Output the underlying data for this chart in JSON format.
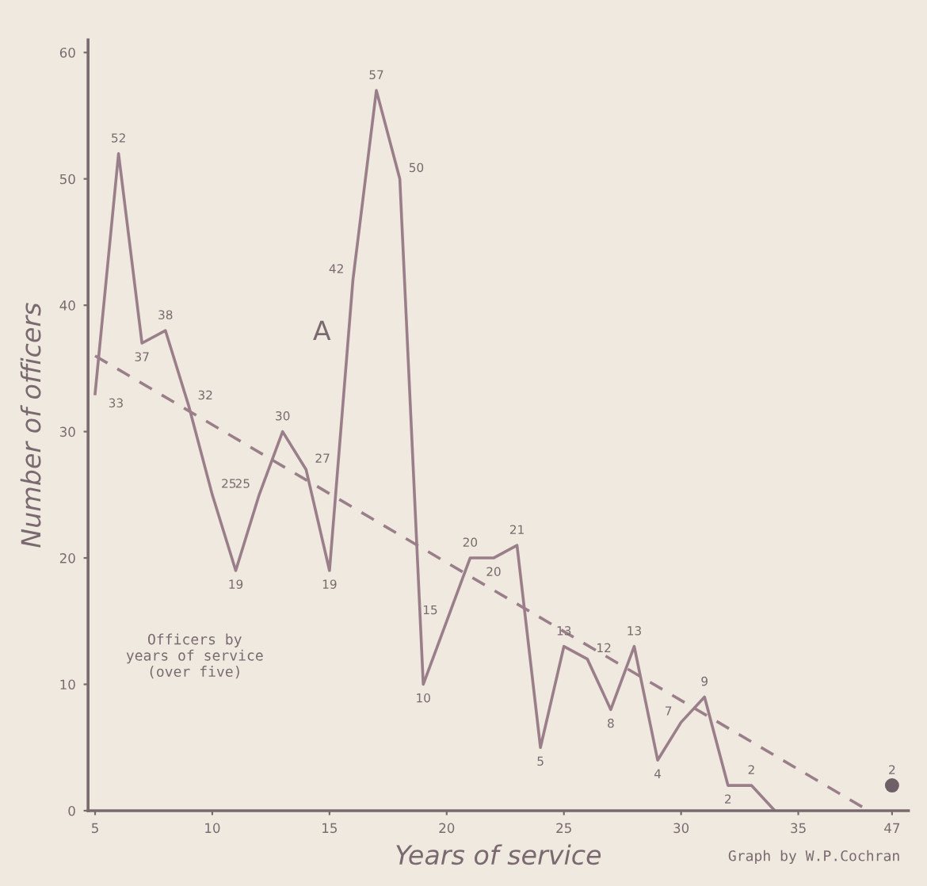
{
  "chart_data": {
    "type": "line",
    "xlabel": "Years of service",
    "ylabel": "Number of officers",
    "annotations": [
      "A",
      "Officers by\nyears of service\n(over five)",
      "Graph by W.P.Cochran"
    ],
    "categories": [
      "5",
      null,
      null,
      null,
      null,
      "10",
      null,
      null,
      null,
      null,
      "15",
      null,
      null,
      null,
      null,
      "20",
      null,
      null,
      null,
      null,
      "25",
      null,
      null,
      null,
      null,
      "30",
      null,
      null,
      null,
      null,
      "35",
      null,
      null,
      null,
      "47"
    ],
    "series": [
      {
        "color": "#9a7f8a",
        "line_style": "solid",
        "marker": "none",
        "values": [
          33,
          52,
          37,
          38,
          32,
          25,
          19,
          25,
          30,
          27,
          19,
          42,
          57,
          50,
          10,
          15,
          20,
          20,
          21,
          5,
          13,
          12,
          8,
          13,
          4,
          7,
          9,
          2,
          2,
          0,
          null,
          null,
          null,
          null,
          null
        ],
        "value_labels": [
          "33",
          "52",
          "37",
          "38",
          "32",
          "25",
          "19",
          "25",
          "30",
          "27",
          "19",
          "42",
          "57",
          "50",
          "10",
          "15",
          "20",
          "20",
          "21",
          "5",
          "13",
          "12",
          "8",
          "13",
          "4",
          "7",
          "9",
          "2",
          "2",
          null,
          null,
          null,
          null,
          null,
          null
        ]
      },
      {
        "type": "scatter",
        "color": "#6f5f66",
        "marker": "circle",
        "values": [
          null,
          null,
          null,
          null,
          null,
          null,
          null,
          null,
          null,
          null,
          null,
          null,
          null,
          null,
          null,
          null,
          null,
          null,
          null,
          null,
          null,
          null,
          null,
          null,
          null,
          null,
          null,
          null,
          null,
          null,
          null,
          null,
          null,
          null,
          2
        ],
        "value_labels": [
          null,
          null,
          null,
          null,
          null,
          null,
          null,
          null,
          null,
          null,
          null,
          null,
          null,
          null,
          null,
          null,
          null,
          null,
          null,
          null,
          null,
          null,
          null,
          null,
          null,
          null,
          null,
          null,
          null,
          null,
          null,
          null,
          null,
          null,
          "2"
        ]
      },
      {
        "color": "#9a7f8a",
        "line_style": "dashed",
        "marker": "none",
        "values": [
          36,
          null,
          null,
          null,
          null,
          null,
          null,
          null,
          null,
          null,
          null,
          null,
          null,
          null,
          null,
          null,
          null,
          null,
          null,
          null,
          null,
          null,
          null,
          null,
          null,
          null,
          null,
          null,
          null,
          null,
          null,
          null,
          null,
          0,
          null
        ]
      }
    ],
    "ylim": [
      0,
      61
    ],
    "yticks": [
      0,
      10,
      20,
      30,
      40,
      50,
      60
    ],
    "grid": false,
    "legend": false
  }
}
